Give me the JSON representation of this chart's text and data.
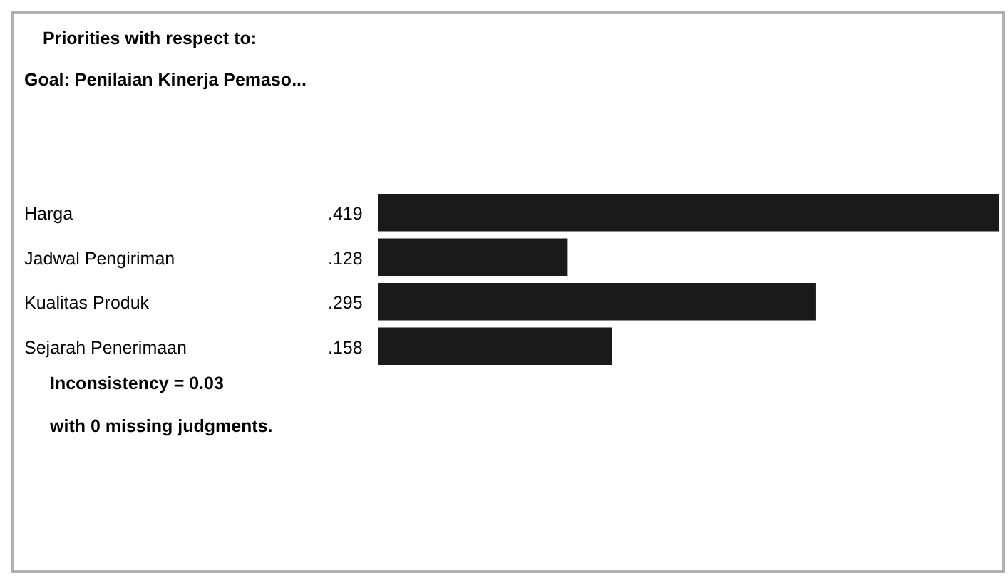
{
  "chart_data": {
    "type": "bar",
    "orientation": "horizontal",
    "title": "Priorities with respect to:",
    "subtitle": "Goal: Penilaian Kinerja Pemaso...",
    "categories": [
      "Harga",
      "Jadwal Pengiriman",
      "Kualitas Produk",
      "Sejarah Penerimaan"
    ],
    "values": [
      0.419,
      0.128,
      0.295,
      0.158
    ],
    "value_labels": [
      ".419",
      ".128",
      ".295",
      ".158"
    ],
    "color": "#1a1a1a",
    "annotations": [
      "Inconsistency = 0.03",
      "with 0  missing judgments."
    ]
  }
}
